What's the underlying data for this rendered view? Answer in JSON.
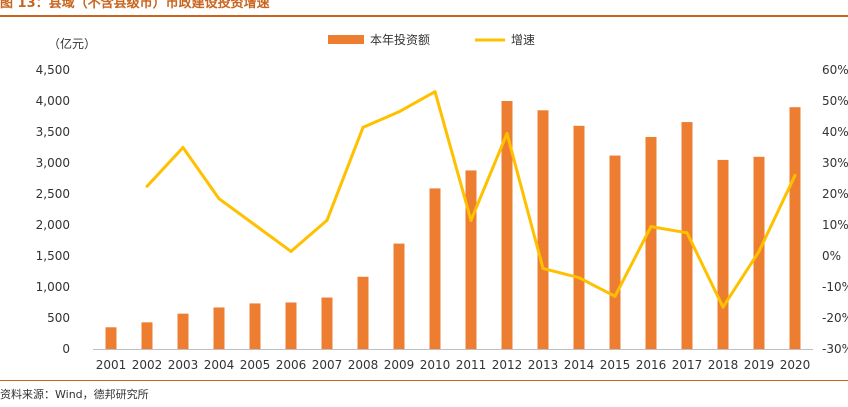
{
  "figure": {
    "title": "图 13：县域（不含县级市）市政建设投资增速",
    "source": "资料来源：Wind，德邦研究所",
    "unit_label": "（亿元）"
  },
  "colors": {
    "bar": "#ed7d31",
    "line": "#ffc000",
    "accent": "#c8651e"
  },
  "chart_data": {
    "type": "bar",
    "categories": [
      "2001",
      "2002",
      "2003",
      "2004",
      "2005",
      "2006",
      "2007",
      "2008",
      "2009",
      "2010",
      "2011",
      "2012",
      "2013",
      "2014",
      "2015",
      "2016",
      "2017",
      "2018",
      "2019",
      "2020"
    ],
    "series": [
      {
        "name": "本年投资额",
        "type": "bar",
        "axis": "left",
        "values": [
          350,
          430,
          570,
          670,
          735,
          750,
          830,
          1165,
          1700,
          2590,
          2880,
          4000,
          3850,
          3600,
          3120,
          3420,
          3660,
          3050,
          3100,
          3900
        ]
      },
      {
        "name": "增速",
        "type": "line",
        "axis": "right",
        "values": [
          null,
          22.5,
          35,
          18.5,
          10,
          1.5,
          11.5,
          41.5,
          46.5,
          53,
          11.5,
          39.5,
          -4,
          -7,
          -13,
          9.5,
          7.5,
          -16.5,
          1.5,
          26
        ]
      }
    ],
    "y_left": {
      "min": 0,
      "max": 4500,
      "ticks": [
        "0",
        "500",
        "1,000",
        "1,500",
        "2,000",
        "2,500",
        "3,000",
        "3,500",
        "4,000",
        "4,500"
      ]
    },
    "y_right": {
      "min": -30,
      "max": 60,
      "ticks": [
        "-30%",
        "-20%",
        "-10%",
        "0%",
        "10%",
        "20%",
        "30%",
        "40%",
        "50%",
        "60%"
      ]
    },
    "legend_position": "top-center",
    "grid": false
  }
}
